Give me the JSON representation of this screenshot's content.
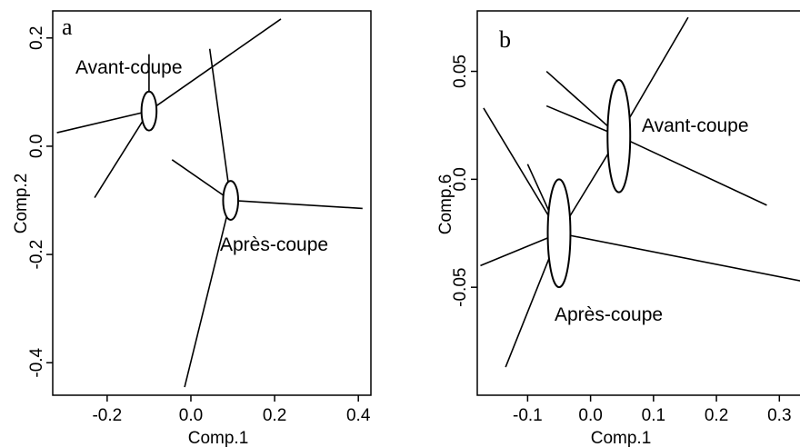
{
  "chart_data": [
    {
      "type": "scatter",
      "panel_label": "a",
      "xlabel": "Comp.1",
      "ylabel": "Comp.2",
      "xlim": [
        -0.33,
        0.43
      ],
      "ylim": [
        -0.46,
        0.25
      ],
      "x_ticks": [
        -0.2,
        0.0,
        0.2,
        0.4
      ],
      "x_tick_labels": [
        "-0.2",
        "0.0",
        "0.2",
        "0.4"
      ],
      "y_ticks": [
        0.2,
        0.0,
        -0.2,
        -0.4
      ],
      "y_tick_labels": [
        "0.2",
        "0.0",
        "-0.2",
        "-0.4"
      ],
      "groups": [
        {
          "name": "Avant-coupe",
          "centroid": [
            -0.1,
            0.065
          ],
          "ellipse_radii": [
            0.018,
            0.036
          ],
          "rays": [
            [
              -0.32,
              0.025
            ],
            [
              0.215,
              0.235
            ],
            [
              -0.23,
              -0.095
            ],
            [
              -0.1,
              0.17
            ]
          ]
        },
        {
          "name": "Après-coupe",
          "centroid": [
            0.095,
            -0.1
          ],
          "ellipse_radii": [
            0.018,
            0.036
          ],
          "rays": [
            [
              -0.045,
              -0.025
            ],
            [
              0.045,
              0.18
            ],
            [
              0.41,
              -0.115
            ],
            [
              -0.015,
              -0.445
            ]
          ]
        }
      ]
    },
    {
      "type": "scatter",
      "panel_label": "b",
      "xlabel": "Comp.1",
      "ylabel": "Comp.6",
      "xlim": [
        -0.18,
        0.34
      ],
      "ylim": [
        -0.1,
        0.078
      ],
      "x_ticks": [
        -0.1,
        0.0,
        0.1,
        0.2,
        0.3
      ],
      "x_tick_labels": [
        "-0.1",
        "0.0",
        "0.1",
        "0.2",
        "0.3"
      ],
      "y_ticks": [
        0.05,
        0.0,
        -0.05
      ],
      "y_tick_labels": [
        "0.05",
        "0.0",
        "-0.05"
      ],
      "groups": [
        {
          "name": "Avant-coupe",
          "centroid": [
            0.045,
            0.02
          ],
          "ellipse_radii": [
            0.018,
            0.026
          ],
          "rays": [
            [
              -0.07,
              0.05
            ],
            [
              -0.07,
              0.034
            ],
            [
              0.155,
              0.075
            ],
            [
              0.28,
              -0.012
            ],
            [
              -0.06,
              -0.03
            ]
          ]
        },
        {
          "name": "Après-coupe",
          "centroid": [
            -0.05,
            -0.025
          ],
          "ellipse_radii": [
            0.018,
            0.025
          ],
          "rays": [
            [
              -0.17,
              0.033
            ],
            [
              -0.1,
              0.007
            ],
            [
              -0.175,
              -0.04
            ],
            [
              -0.135,
              -0.087
            ],
            [
              0.35,
              -0.048
            ]
          ]
        }
      ]
    }
  ]
}
